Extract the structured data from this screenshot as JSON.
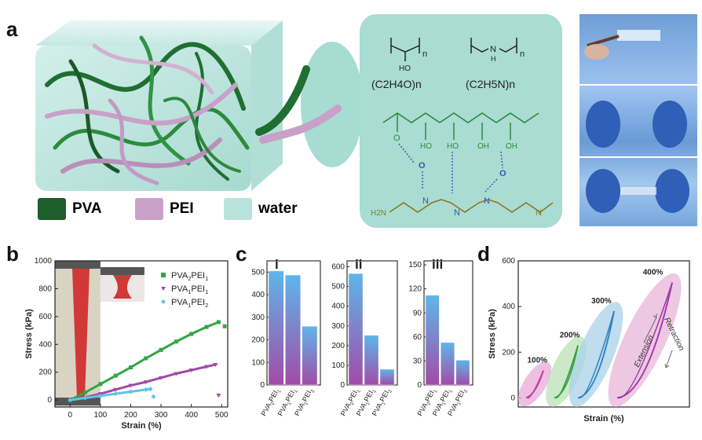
{
  "labels": {
    "a": "a",
    "b": "b",
    "c": "c",
    "d": "d"
  },
  "panel_a": {
    "legend": [
      {
        "name": "PVA",
        "color": "#1f5e2a"
      },
      {
        "name": "PEI",
        "color": "#c9a0c8"
      },
      {
        "name": "water",
        "color": "#b8e3dc"
      }
    ],
    "pva_formula": "(C2H4O)n",
    "pei_formula": "(C2H5N)n",
    "oh": "OH",
    "ho": "HO",
    "nh": "N",
    "h": "H",
    "o": "O",
    "n": "n",
    "h2n": "H2N"
  },
  "chart_data": [
    {
      "type": "scatter",
      "panel": "b",
      "xlabel": "Strain (%)",
      "ylabel": "Stress (kPa)",
      "xlim": [
        -50,
        520
      ],
      "ylim": [
        -50,
        1000
      ],
      "xticks": [
        0,
        100,
        200,
        300,
        400,
        500
      ],
      "yticks": [
        0,
        200,
        400,
        600,
        800,
        1000
      ],
      "legend_position": "top-right",
      "series": [
        {
          "name": "PVA2PEI1",
          "color": "#33a544",
          "marker": "square",
          "x": [
            0,
            50,
            100,
            150,
            200,
            250,
            300,
            350,
            400,
            450,
            490,
            510
          ],
          "y": [
            0,
            55,
            115,
            175,
            235,
            300,
            360,
            420,
            475,
            525,
            560,
            530
          ]
        },
        {
          "name": "PVA1PEI1",
          "color": "#a14aa6",
          "marker": "triangle-down",
          "x": [
            0,
            50,
            100,
            150,
            200,
            250,
            300,
            350,
            400,
            450,
            480,
            490
          ],
          "y": [
            0,
            20,
            45,
            75,
            105,
            130,
            160,
            190,
            215,
            240,
            255,
            35
          ]
        },
        {
          "name": "PVA1PEI2",
          "color": "#5ec3e8",
          "marker": "diamond",
          "x": [
            0,
            50,
            100,
            150,
            200,
            250,
            265,
            275
          ],
          "y": [
            0,
            15,
            30,
            45,
            60,
            75,
            80,
            25
          ]
        }
      ]
    },
    {
      "type": "bar",
      "panel": "c-i",
      "title": "i",
      "categories": [
        "PVA2PEI1",
        "PVA1PEI1",
        "PVA1PEI2"
      ],
      "values": [
        505,
        487,
        260
      ],
      "ylim": [
        0,
        1000
      ],
      "yticks": [
        0,
        100,
        200,
        300,
        400,
        500
      ]
    },
    {
      "type": "bar",
      "panel": "c-ii",
      "title": "ii",
      "categories": [
        "PVA2PEI1",
        "PVA1PEI1",
        "PVA1PEI2"
      ],
      "values": [
        565,
        252,
        80
      ],
      "ylim": [
        0,
        600
      ],
      "yticks": [
        0,
        100,
        200,
        300,
        400,
        500,
        600
      ]
    },
    {
      "type": "bar",
      "panel": "c-iii",
      "title": "iii",
      "categories": [
        "PVA2PEI1",
        "PVA1PEI1",
        "PVA1PEI2"
      ],
      "values": [
        112,
        53,
        31
      ],
      "ylim": [
        0,
        150
      ],
      "yticks": [
        0,
        30,
        60,
        90,
        120,
        150
      ]
    },
    {
      "type": "line",
      "panel": "d",
      "xlabel": "Strain (%)",
      "ylabel": "Stress (kPa)",
      "ylim": [
        -40,
        600
      ],
      "yticks": [
        0,
        200,
        400,
        600
      ],
      "annotations": [
        "100%",
        "200%",
        "300%",
        "400%",
        "Extension",
        "Retraction"
      ],
      "loops": [
        {
          "label": "100%",
          "peak_stress": 120
        },
        {
          "label": "200%",
          "peak_stress": 230
        },
        {
          "label": "300%",
          "peak_stress": 380
        },
        {
          "label": "400%",
          "peak_stress": 505
        }
      ]
    }
  ]
}
